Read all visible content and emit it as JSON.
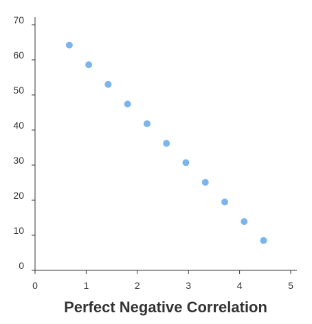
{
  "chart_data": {
    "type": "scatter",
    "title": "Perfect Negative Correlation",
    "xlabel": "",
    "ylabel": "",
    "xlim": [
      0,
      5
    ],
    "ylim": [
      0,
      70
    ],
    "x_ticks": [
      "0",
      "1",
      "2",
      "3",
      "4",
      "5"
    ],
    "y_ticks": [
      "0",
      "10",
      "20",
      "30",
      "40",
      "50",
      "60",
      "70"
    ],
    "grid": false,
    "legend": "none",
    "point_color": "#7cb5ec",
    "series": [
      {
        "x": [
          0.67,
          1.05,
          1.43,
          1.81,
          2.19,
          2.57,
          2.95,
          3.33,
          3.71,
          4.09,
          4.47
        ],
        "y": [
          64.2,
          58.6,
          53.0,
          47.4,
          41.8,
          36.2,
          30.7,
          25.1,
          19.5,
          13.9,
          8.5
        ]
      }
    ]
  }
}
